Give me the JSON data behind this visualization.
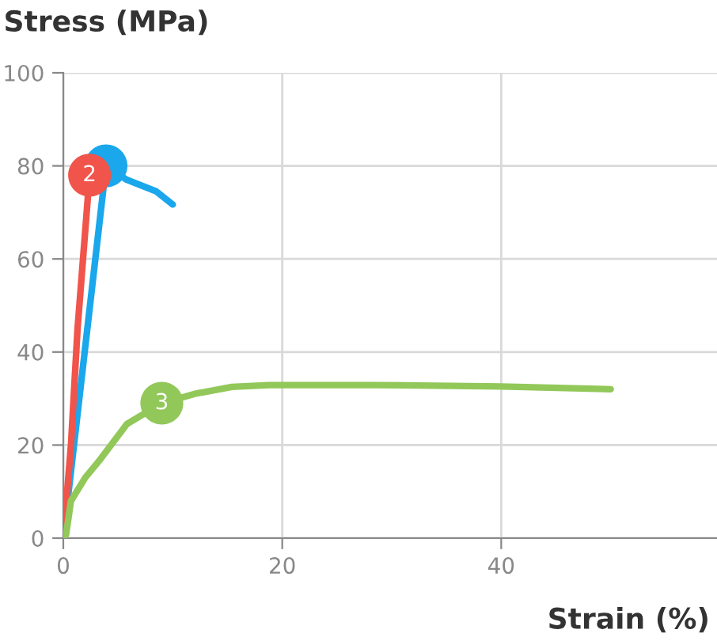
{
  "chart_data": {
    "type": "line",
    "xlabel": "Strain (%)",
    "ylabel": "Stress (MPa)",
    "xlim": [
      0,
      60
    ],
    "ylim": [
      0,
      100
    ],
    "xticks": [
      0,
      20,
      40
    ],
    "yticks": [
      0,
      20,
      40,
      60,
      80,
      100
    ],
    "grid": true,
    "line_style": "solid",
    "series": [
      {
        "color": "#1aa7ec",
        "marker": "none",
        "x": [
          0,
          3.9,
          5.8,
          8.5,
          10
        ],
        "values": [
          0,
          80,
          77,
          74.5,
          71.7
        ]
      },
      {
        "color": "#f0544a",
        "marker": "none",
        "x": [
          0,
          0.7,
          1.3,
          2.4
        ],
        "values": [
          0,
          20,
          45,
          78
        ]
      },
      {
        "color": "#92c85a",
        "marker": "none",
        "x": [
          0,
          0.25,
          0.7,
          2,
          3.4,
          5.8,
          9,
          12,
          15.4,
          18.8,
          28.4,
          40,
          50
        ],
        "values": [
          0,
          0.7,
          8,
          13,
          17,
          24.5,
          29,
          31,
          32.5,
          32.9,
          32.9,
          32.6,
          32
        ]
      },
      {
        "type": "scatter",
        "marker": "circle",
        "color": "#1aa7ec",
        "x": [
          3.9
        ],
        "values": [
          80
        ]
      },
      {
        "type": "scatter",
        "marker": "circle",
        "color": "#f0544a",
        "x": [
          2.4
        ],
        "values": [
          78
        ]
      },
      {
        "type": "scatter",
        "marker": "circle",
        "color": "#92c85a",
        "x": [
          9
        ],
        "values": [
          29
        ]
      }
    ],
    "annotations": [
      {
        "text": "2",
        "x": 2.4,
        "y": 78
      },
      {
        "text": "3",
        "x": 9,
        "y": 29
      }
    ]
  }
}
